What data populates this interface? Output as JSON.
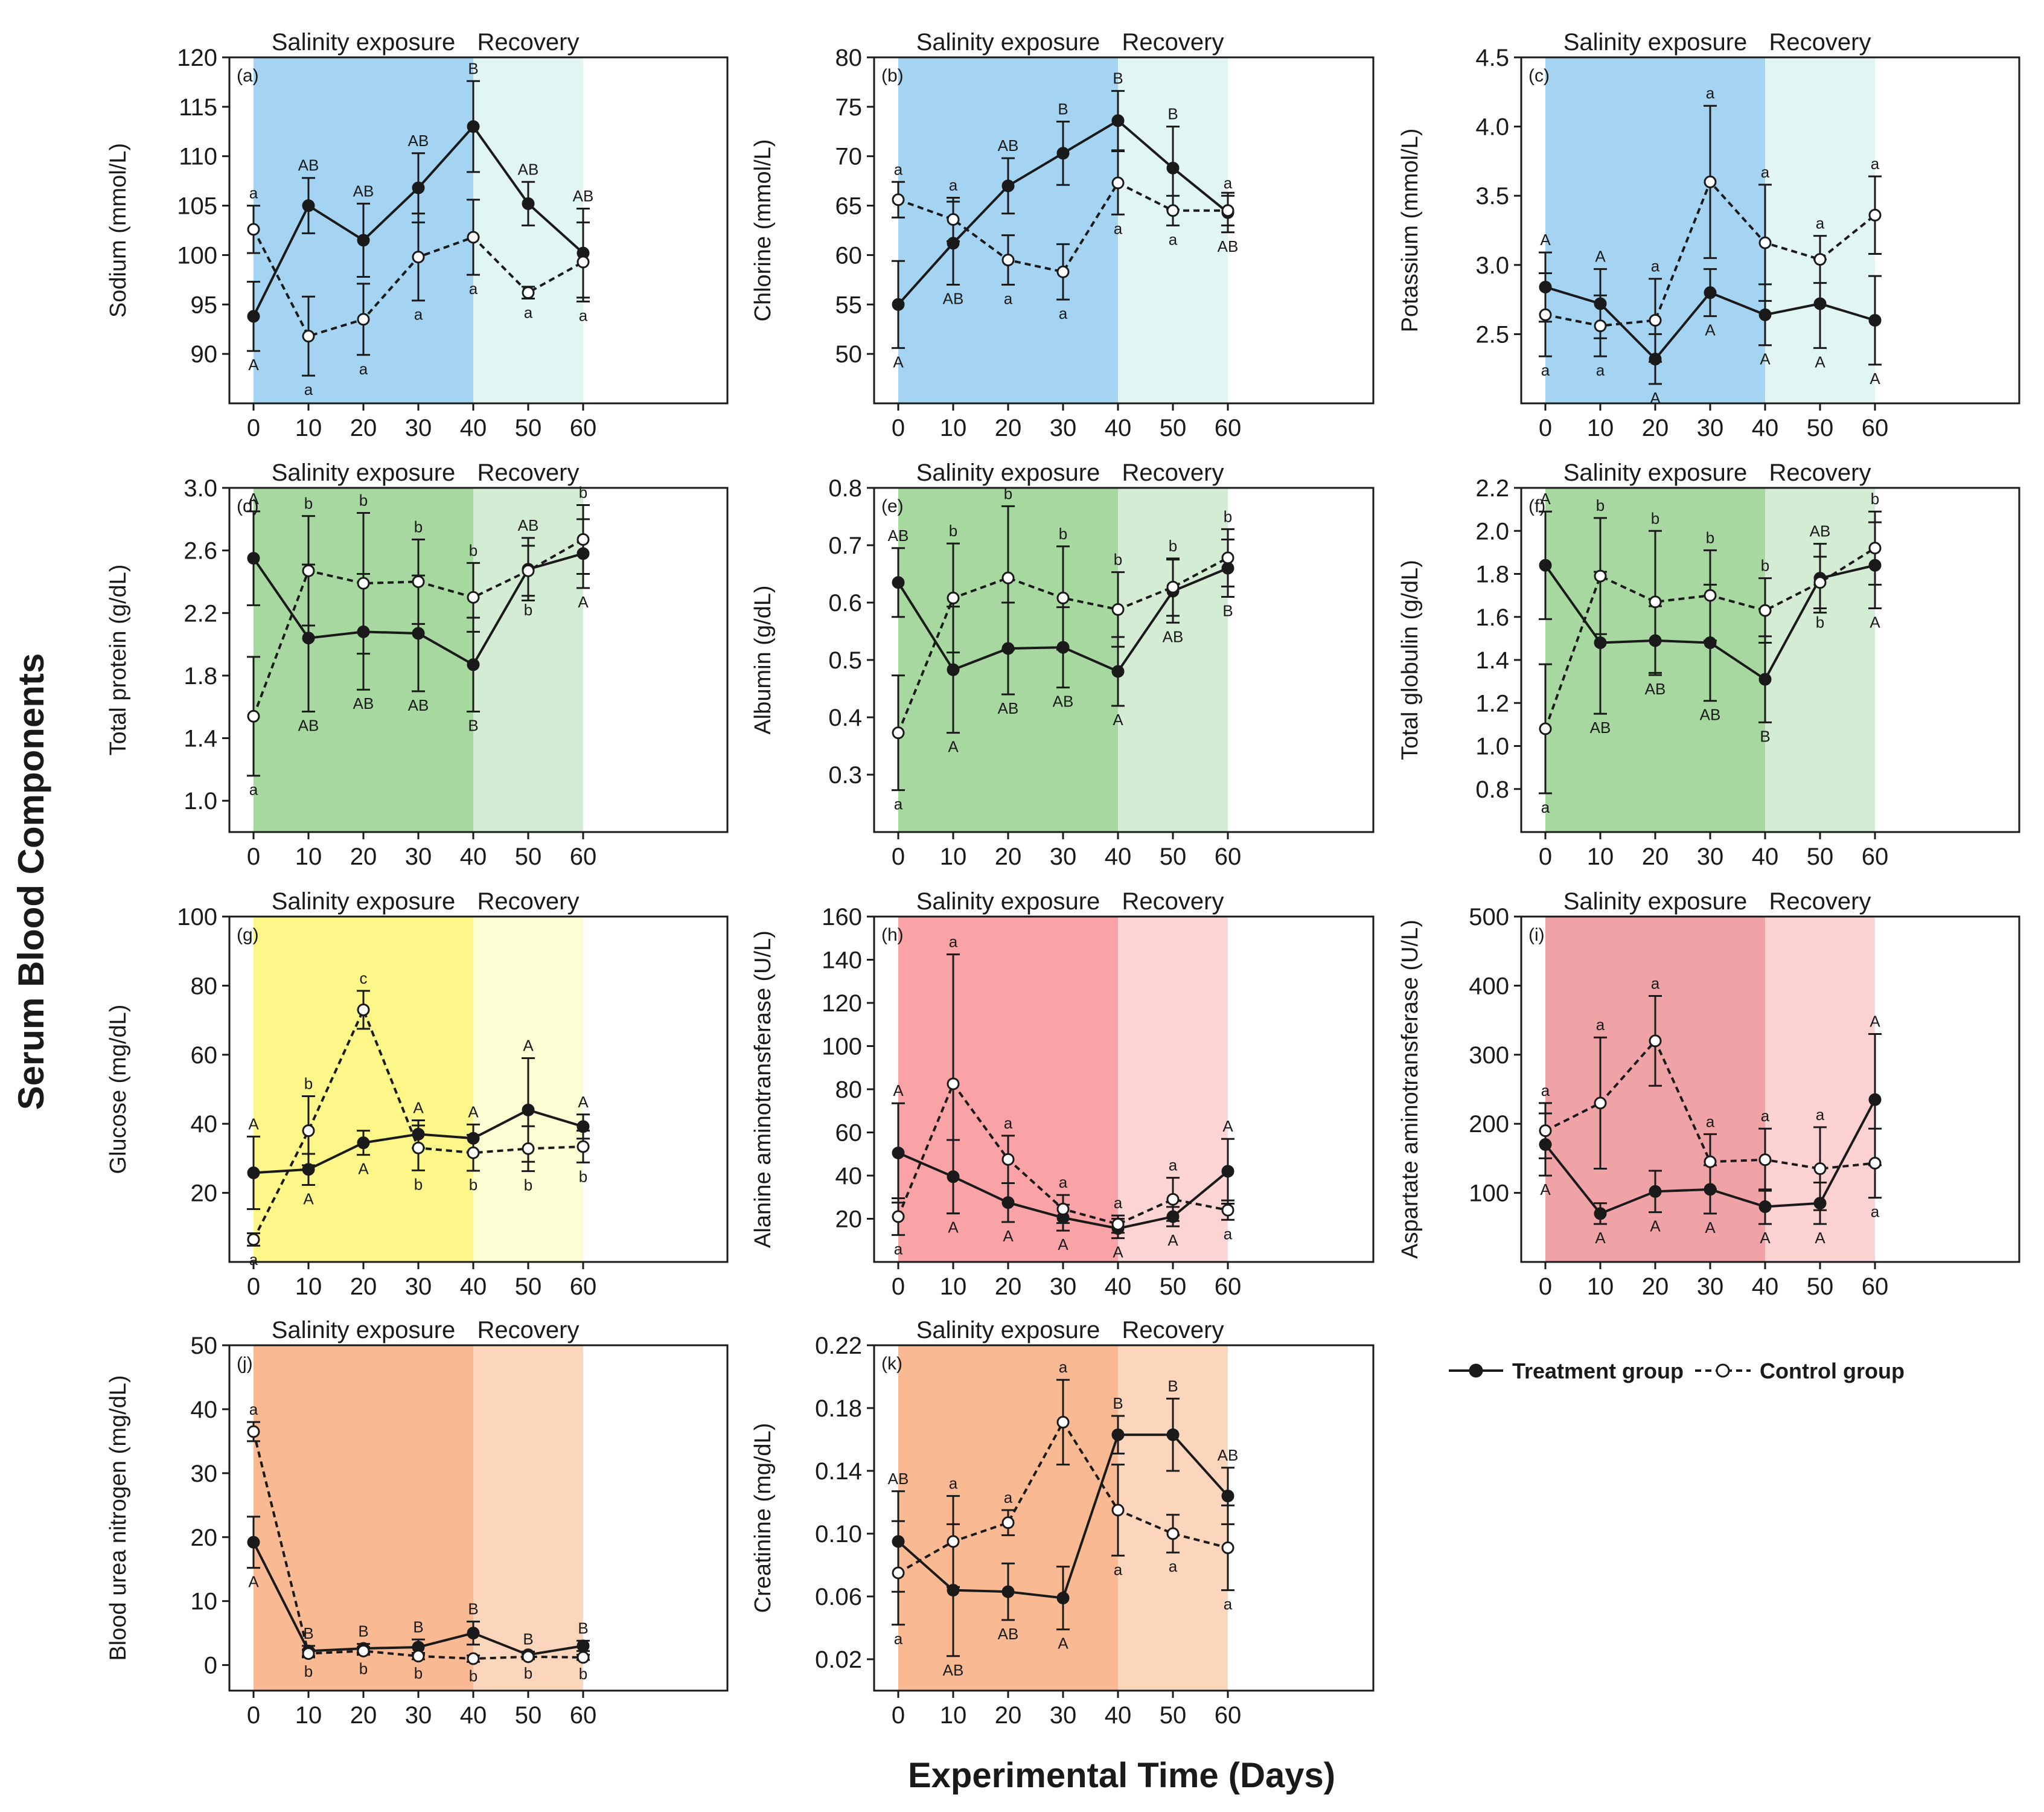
{
  "figure": {
    "ylabel": "Serum Blood Components",
    "xlabel": "Experimental Time (Days)",
    "phase_exposure": "Salinity exposure",
    "phase_recovery": "Recovery"
  },
  "legend": {
    "treatment": "Treatment group",
    "control": "Control group"
  },
  "colors": {
    "blue_exposure": "#a4d4f1",
    "blue_recovery": "#e1f5f3",
    "green_exposure": "#a6d8a0",
    "green_recovery": "#d4ecd3",
    "yellow_exposure": "#fcf788",
    "yellow_recovery": "#fdfdd4",
    "red_exposure": "#f9a3a6",
    "red_recovery": "#fdd4d4",
    "rose_exposure": "#f0a3a6",
    "rose_recovery": "#fbd1d2",
    "orange_exposure": "#f9b992",
    "orange_recovery": "#fcd6bc"
  },
  "chart_data": [
    {
      "id": "a",
      "letter": "(a)",
      "type": "line",
      "ylabel": "Sodium (mmol/L)",
      "x": [
        0,
        10,
        20,
        30,
        40,
        50,
        60
      ],
      "ylim": [
        85,
        120
      ],
      "yticks": [
        "90",
        "95",
        "100",
        "105",
        "110",
        "115",
        "120"
      ],
      "ytick_values": [
        90,
        95,
        100,
        105,
        110,
        115,
        120
      ],
      "colors": [
        "blue_exposure",
        "blue_recovery"
      ],
      "series": [
        {
          "name": "Treatment group",
          "values": [
            93.8,
            105,
            101.5,
            106.8,
            113,
            105.2,
            100.2
          ],
          "err": [
            3.5,
            2.8,
            3.7,
            3.5,
            4.6,
            2.2,
            4.5
          ],
          "labels": [
            "A",
            "AB",
            "AB",
            "AB",
            "B",
            "AB",
            "AB"
          ]
        },
        {
          "name": "Control group",
          "values": [
            102.6,
            91.8,
            93.5,
            99.8,
            101.8,
            96.2,
            99.3
          ],
          "err": [
            2.4,
            4,
            3.6,
            4.4,
            3.8,
            0.6,
            4
          ],
          "labels": [
            "a",
            "a",
            "a",
            "a",
            "a",
            "a",
            "a"
          ]
        }
      ]
    },
    {
      "id": "b",
      "letter": "(b)",
      "type": "line",
      "ylabel": "Chlorine (mmol/L)",
      "x": [
        0,
        10,
        20,
        30,
        40,
        50,
        60
      ],
      "ylim": [
        45,
        80
      ],
      "yticks": [
        "50",
        "55",
        "60",
        "65",
        "70",
        "75",
        "80"
      ],
      "ytick_values": [
        50,
        55,
        60,
        65,
        70,
        75,
        80
      ],
      "colors": [
        "blue_exposure",
        "blue_recovery"
      ],
      "series": [
        {
          "name": "Treatment group",
          "values": [
            55,
            61.2,
            67,
            70.3,
            73.6,
            68.8,
            64.3
          ],
          "err": [
            4.4,
            4.2,
            2.8,
            3.2,
            3,
            4.2,
            2
          ],
          "labels": [
            "A",
            "AB",
            "AB",
            "B",
            "B",
            "B",
            "AB"
          ]
        },
        {
          "name": "Control group",
          "values": [
            65.6,
            63.6,
            59.5,
            58.3,
            67.3,
            64.5,
            64.5
          ],
          "err": [
            1.8,
            2.2,
            2.5,
            2.8,
            3.2,
            1.5,
            1.5
          ],
          "labels": [
            "a",
            "a",
            "a",
            "a",
            "a",
            "a",
            "a"
          ]
        }
      ]
    },
    {
      "id": "c",
      "letter": "(c)",
      "type": "line",
      "ylabel": "Potassium (mmol/L)",
      "x": [
        0,
        10,
        20,
        30,
        40,
        50,
        60
      ],
      "ylim": [
        2.0,
        4.5
      ],
      "yticks": [
        "2.5",
        "3.0",
        "3.5",
        "4.0",
        "4.5"
      ],
      "ytick_values": [
        2.5,
        3.0,
        3.5,
        4.0,
        4.5
      ],
      "colors": [
        "blue_exposure",
        "blue_recovery"
      ],
      "series": [
        {
          "name": "Treatment group",
          "values": [
            2.84,
            2.72,
            2.32,
            2.8,
            2.64,
            2.72,
            2.6
          ],
          "err": [
            0.25,
            0.25,
            0.18,
            0.17,
            0.22,
            0.32,
            0.32
          ],
          "labels": [
            "A",
            "A",
            "A",
            "A",
            "A",
            "A",
            "A"
          ]
        },
        {
          "name": "Control group",
          "values": [
            2.64,
            2.56,
            2.6,
            3.6,
            3.16,
            3.04,
            3.36
          ],
          "err": [
            0.3,
            0.22,
            0.3,
            0.55,
            0.42,
            0.17,
            0.28
          ],
          "labels": [
            "a",
            "a",
            "a",
            "a",
            "a",
            "a",
            "a"
          ]
        }
      ]
    },
    {
      "id": "d",
      "letter": "(d)",
      "type": "line",
      "ylabel": "Total protein (g/dL)",
      "x": [
        0,
        10,
        20,
        30,
        40,
        50,
        60
      ],
      "ylim": [
        0.8,
        3.0
      ],
      "yticks": [
        "1.0",
        "1.4",
        "1.8",
        "2.2",
        "2.6",
        "3.0"
      ],
      "ytick_values": [
        1.0,
        1.4,
        1.8,
        2.2,
        2.6,
        3.0
      ],
      "colors": [
        "green_exposure",
        "green_recovery"
      ],
      "series": [
        {
          "name": "Treatment group",
          "values": [
            2.55,
            2.04,
            2.08,
            2.07,
            1.87,
            2.48,
            2.58
          ],
          "err": [
            0.3,
            0.47,
            0.37,
            0.37,
            0.3,
            0.2,
            0.22
          ],
          "labels": [
            "A",
            "AB",
            "AB",
            "AB",
            "B",
            "AB",
            "A"
          ]
        },
        {
          "name": "Control group",
          "values": [
            1.54,
            2.47,
            2.39,
            2.4,
            2.3,
            2.47,
            2.67
          ],
          "err": [
            0.38,
            0.35,
            0.45,
            0.27,
            0.22,
            0.16,
            0.22
          ],
          "labels": [
            "a",
            "b",
            "b",
            "b",
            "b",
            "b",
            "b"
          ]
        }
      ]
    },
    {
      "id": "e",
      "letter": "(e)",
      "type": "line",
      "ylabel": "Albumin (g/dL)",
      "x": [
        0,
        10,
        20,
        30,
        40,
        50,
        60
      ],
      "ylim": [
        0.2,
        0.8
      ],
      "yticks": [
        "0.3",
        "0.4",
        "0.5",
        "0.6",
        "0.7",
        "0.8"
      ],
      "ytick_values": [
        0.3,
        0.4,
        0.5,
        0.6,
        0.7,
        0.8
      ],
      "colors": [
        "green_exposure",
        "green_recovery"
      ],
      "series": [
        {
          "name": "Treatment group",
          "values": [
            0.635,
            0.483,
            0.52,
            0.522,
            0.48,
            0.62,
            0.66
          ],
          "err": [
            0.06,
            0.11,
            0.08,
            0.07,
            0.06,
            0.055,
            0.05
          ],
          "labels": [
            "AB",
            "A",
            "AB",
            "AB",
            "A",
            "AB",
            "B"
          ]
        },
        {
          "name": "Control group",
          "values": [
            0.373,
            0.608,
            0.643,
            0.608,
            0.588,
            0.627,
            0.678
          ],
          "err": [
            0.1,
            0.095,
            0.125,
            0.09,
            0.065,
            0.05,
            0.05
          ],
          "labels": [
            "a",
            "b",
            "b",
            "b",
            "b",
            "b",
            "b"
          ]
        }
      ]
    },
    {
      "id": "f",
      "letter": "(f)",
      "type": "line",
      "ylabel": "Total globulin (g/dL)",
      "x": [
        0,
        10,
        20,
        30,
        40,
        50,
        60
      ],
      "ylim": [
        0.6,
        2.2
      ],
      "yticks": [
        "0.8",
        "1.0",
        "1.2",
        "1.4",
        "1.6",
        "1.8",
        "2.0",
        "2.2"
      ],
      "ytick_values": [
        0.8,
        1.0,
        1.2,
        1.4,
        1.6,
        1.8,
        2.0,
        2.2
      ],
      "colors": [
        "green_exposure",
        "green_recovery"
      ],
      "series": [
        {
          "name": "Treatment group",
          "values": [
            1.84,
            1.48,
            1.49,
            1.48,
            1.31,
            1.78,
            1.84
          ],
          "err": [
            0.25,
            0.33,
            0.16,
            0.27,
            0.2,
            0.16,
            0.2
          ],
          "labels": [
            "A",
            "AB",
            "AB",
            "AB",
            "B",
            "AB",
            "A"
          ]
        },
        {
          "name": "Control group",
          "values": [
            1.08,
            1.79,
            1.67,
            1.7,
            1.63,
            1.76,
            1.92
          ],
          "err": [
            0.3,
            0.27,
            0.33,
            0.21,
            0.15,
            0.12,
            0.17
          ],
          "labels": [
            "a",
            "b",
            "b",
            "b",
            "b",
            "b",
            "b"
          ]
        }
      ]
    },
    {
      "id": "g",
      "letter": "(g)",
      "type": "line",
      "ylabel": "Glucose (mg/dL)",
      "x": [
        0,
        10,
        20,
        30,
        40,
        50,
        60
      ],
      "ylim": [
        0,
        100
      ],
      "yticks": [
        "20",
        "40",
        "60",
        "80",
        "100"
      ],
      "ytick_values": [
        20,
        40,
        60,
        80,
        100
      ],
      "colors": [
        "yellow_exposure",
        "yellow_recovery"
      ],
      "series": [
        {
          "name": "Treatment group",
          "values": [
            25.8,
            26.8,
            34.5,
            37,
            35.8,
            44,
            39.2
          ],
          "err": [
            10.5,
            4.5,
            3.5,
            4,
            4,
            15,
            3.5
          ],
          "labels": [
            "A",
            "A",
            "A",
            "A",
            "A",
            "A",
            "A"
          ]
        },
        {
          "name": "Control group",
          "values": [
            6.5,
            38,
            73,
            33,
            31.6,
            32.8,
            33.4
          ],
          "err": [
            1.8,
            10,
            5.5,
            6.5,
            5.2,
            6.5,
            4.6
          ],
          "labels": [
            "a",
            "b",
            "c",
            "b",
            "b",
            "b",
            "b"
          ]
        }
      ]
    },
    {
      "id": "h",
      "letter": "(h)",
      "type": "line",
      "ylabel": "Alanine aminotransferase (U/L)",
      "x": [
        0,
        10,
        20,
        30,
        40,
        50,
        60
      ],
      "ylim": [
        0,
        160
      ],
      "yticks": [
        "20",
        "40",
        "60",
        "80",
        "100",
        "120",
        "140",
        "160"
      ],
      "ytick_values": [
        20,
        40,
        60,
        80,
        100,
        120,
        140,
        160
      ],
      "colors": [
        "red_exposure",
        "red_recovery"
      ],
      "series": [
        {
          "name": "Treatment group",
          "values": [
            50.5,
            39.5,
            27.5,
            20.5,
            15.5,
            21,
            42
          ],
          "err": [
            23,
            17,
            9,
            6,
            4.5,
            4.5,
            15
          ],
          "labels": [
            "A",
            "A",
            "A",
            "A",
            "A",
            "A",
            "A"
          ]
        },
        {
          "name": "Control group",
          "values": [
            21,
            82.5,
            47.5,
            24.5,
            17.5,
            29,
            24
          ],
          "err": [
            8.5,
            60,
            11,
            6.5,
            4,
            10,
            4.5
          ],
          "labels": [
            "a",
            "a",
            "a",
            "a",
            "a",
            "a",
            "a"
          ]
        }
      ]
    },
    {
      "id": "i",
      "letter": "(i)",
      "type": "line",
      "ylabel": "Aspartate aminotransferase (U/L)",
      "x": [
        0,
        10,
        20,
        30,
        40,
        50,
        60
      ],
      "ylim": [
        0,
        500
      ],
      "yticks": [
        "100",
        "200",
        "300",
        "400",
        "500"
      ],
      "ytick_values": [
        100,
        200,
        300,
        400,
        500
      ],
      "colors": [
        "rose_exposure",
        "rose_recovery"
      ],
      "series": [
        {
          "name": "Treatment group",
          "values": [
            170,
            70,
            102,
            105,
            80,
            85,
            235
          ],
          "err": [
            45,
            15,
            30,
            35,
            25,
            30,
            95
          ],
          "labels": [
            "A",
            "A",
            "A",
            "A",
            "A",
            "A",
            "A"
          ]
        },
        {
          "name": "Control group",
          "values": [
            190,
            230,
            320,
            145,
            148,
            135,
            143
          ],
          "err": [
            40,
            95,
            65,
            40,
            45,
            60,
            50
          ],
          "labels": [
            "a",
            "a",
            "a",
            "a",
            "a",
            "a",
            "a"
          ]
        }
      ]
    },
    {
      "id": "j",
      "letter": "(j)",
      "type": "line",
      "ylabel": "Blood urea nitrogen (mg/dL)",
      "x": [
        0,
        10,
        20,
        30,
        40,
        50,
        60
      ],
      "ylim": [
        -4,
        50
      ],
      "yticks": [
        "0",
        "10",
        "20",
        "30",
        "40",
        "50"
      ],
      "ytick_values": [
        0,
        10,
        20,
        30,
        40,
        50
      ],
      "colors": [
        "orange_exposure",
        "orange_recovery"
      ],
      "series": [
        {
          "name": "Treatment group",
          "values": [
            19.2,
            2.2,
            2.6,
            2.8,
            5,
            1.6,
            3
          ],
          "err": [
            4,
            0.8,
            0.7,
            1.2,
            1.8,
            0.5,
            0.8
          ],
          "labels": [
            "A",
            "B",
            "B",
            "B",
            "B",
            "B",
            "B"
          ]
        },
        {
          "name": "Control group",
          "values": [
            36.5,
            1.8,
            2.2,
            1.4,
            1,
            1.3,
            1.2
          ],
          "err": [
            1.5,
            0.6,
            0.6,
            0.5,
            0.5,
            0.4,
            0.4
          ],
          "labels": [
            "a",
            "b",
            "b",
            "b",
            "b",
            "b",
            "b"
          ]
        }
      ]
    },
    {
      "id": "k",
      "letter": "(k)",
      "type": "line",
      "ylabel": "Creatinine (mg/dL)",
      "x": [
        0,
        10,
        20,
        30,
        40,
        50,
        60
      ],
      "ylim": [
        0,
        0.22
      ],
      "yticks": [
        "0.02",
        "0.06",
        "0.10",
        "0.14",
        "0.18",
        "0.22"
      ],
      "ytick_values": [
        0.02,
        0.06,
        0.1,
        0.14,
        0.18,
        0.22
      ],
      "colors": [
        "orange_exposure",
        "orange_recovery"
      ],
      "series": [
        {
          "name": "Treatment group",
          "values": [
            0.095,
            0.064,
            0.063,
            0.059,
            0.163,
            0.163,
            0.124
          ],
          "err": [
            0.032,
            0.042,
            0.018,
            0.02,
            0.012,
            0.023,
            0.018
          ],
          "labels": [
            "AB",
            "AB",
            "AB",
            "A",
            "B",
            "B",
            "AB"
          ]
        },
        {
          "name": "Control group",
          "values": [
            0.075,
            0.095,
            0.107,
            0.171,
            0.115,
            0.1,
            0.091
          ],
          "err": [
            0.033,
            0.029,
            0.008,
            0.027,
            0.029,
            0.012,
            0.027
          ],
          "labels": [
            "a",
            "a",
            "a",
            "a",
            "a",
            "a",
            "a"
          ]
        }
      ]
    }
  ]
}
